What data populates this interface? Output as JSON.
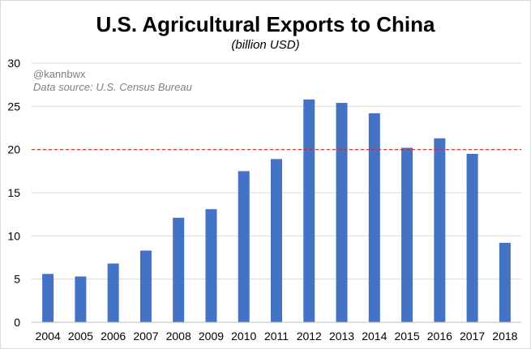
{
  "chart_data": {
    "type": "bar",
    "title": "U.S. Agricultural Exports to China",
    "subtitle": "(billion USD)",
    "annotations": [
      "@kannbwx",
      "Data source: U.S. Census Bureau"
    ],
    "categories": [
      "2004",
      "2005",
      "2006",
      "2007",
      "2008",
      "2009",
      "2010",
      "2011",
      "2012",
      "2013",
      "2014",
      "2015",
      "2016",
      "2017",
      "2018"
    ],
    "values": [
      5.6,
      5.3,
      6.8,
      8.3,
      12.1,
      13.1,
      17.5,
      18.9,
      25.8,
      25.4,
      24.2,
      20.2,
      21.3,
      19.5,
      9.2
    ],
    "ylim": [
      0,
      30
    ],
    "yticks": [
      0,
      5,
      10,
      15,
      20,
      25,
      30
    ],
    "ytick_labels": [
      "0",
      "5",
      "10",
      "15",
      "20",
      "25",
      "30"
    ],
    "reference_line": {
      "value": 20,
      "style": "dashed",
      "color": "#e0241b"
    },
    "grid": "horizontal",
    "bar_color": "#4472c4",
    "xlabel": "",
    "ylabel": ""
  }
}
